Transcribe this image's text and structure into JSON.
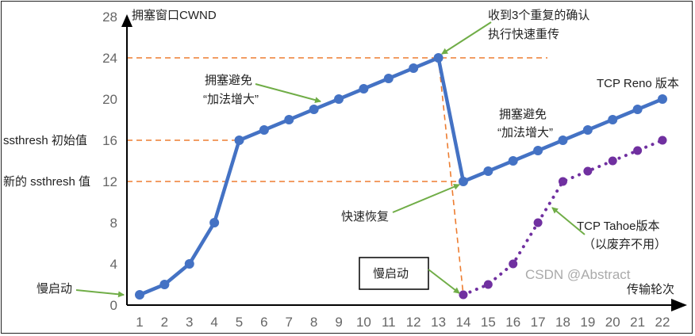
{
  "chart_data": {
    "type": "line",
    "ylabel": "拥塞窗口CWND",
    "xlabel": "传输轮次",
    "ylim": [
      0,
      28
    ],
    "yticks": [
      "0",
      "4",
      "8",
      "12",
      "16",
      "20",
      "24",
      "28"
    ],
    "xticks": [
      "1",
      "2",
      "3",
      "4",
      "5",
      "6",
      "7",
      "8",
      "9",
      "10",
      "11",
      "12",
      "13",
      "14",
      "15",
      "16",
      "17",
      "18",
      "19",
      "20",
      "21",
      "22"
    ],
    "series": [
      {
        "name": "TCP Reno 版本",
        "color": "#4472C4",
        "style": "solid",
        "x": [
          1,
          2,
          3,
          4,
          5,
          6,
          7,
          8,
          9,
          10,
          11,
          12,
          13,
          14,
          15,
          16,
          17,
          18,
          19,
          20,
          21,
          22
        ],
        "y": [
          1,
          2,
          4,
          8,
          16,
          17,
          18,
          19,
          20,
          21,
          22,
          23,
          24,
          12,
          13,
          14,
          15,
          16,
          17,
          18,
          19,
          20
        ]
      },
      {
        "name": "TCP Tahoe版本",
        "color": "#7030A0",
        "style": "dotted",
        "x": [
          14,
          15,
          16,
          17,
          18,
          19,
          20,
          21,
          22
        ],
        "y": [
          1,
          2,
          4,
          8,
          12,
          13,
          14,
          15,
          16
        ]
      }
    ],
    "reference_lines": [
      {
        "y": 24,
        "color": "#ED7D31"
      },
      {
        "y": 16,
        "label": "ssthresh 初始值",
        "color": "#ED7D31"
      },
      {
        "y": 12,
        "label": "新的 ssthresh 值",
        "color": "#ED7D31"
      }
    ],
    "annotations": {
      "slow_start_left": "慢启动",
      "ca1_line1": "拥塞避免",
      "ca1_line2": "“加法增大”",
      "triple_ack_line1": "收到3个重复的确认",
      "triple_ack_line2": "执行快速重传",
      "reno_label": "TCP Reno 版本",
      "ca2_line1": "拥塞避免",
      "ca2_line2": "“加法增大”",
      "fast_recovery": "快速恢复",
      "slow_start_box": "慢启动",
      "tahoe_line1": "TCP Tahoe版本",
      "tahoe_line2": "（以废弃不用）"
    },
    "watermark": "CSDN @Abstract"
  },
  "colors": {
    "arrow": "#70AD47",
    "dash": "#ED7D31"
  }
}
